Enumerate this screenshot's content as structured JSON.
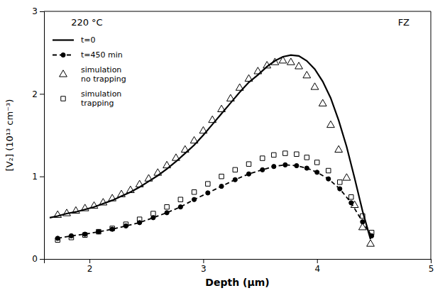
{
  "chart_data": {
    "type": "line",
    "xlabel": "Depth (μm)",
    "ylabel": "[V₂] (10¹³ cm⁻³)",
    "annotations": [
      "220 °C",
      "FZ"
    ],
    "xlim": [
      1.6,
      5.0
    ],
    "ylim": [
      0,
      3.0
    ],
    "xticks": [
      2,
      3,
      4,
      5
    ],
    "yticks": [
      0,
      1,
      2,
      3
    ],
    "grid": false,
    "legend": "upper left",
    "series": [
      {
        "name": "t=0",
        "type": "line",
        "line_style": "solid",
        "marker": "none",
        "color": "#000000",
        "x": [
          1.65,
          1.72,
          1.8,
          1.88,
          1.96,
          2.04,
          2.12,
          2.2,
          2.28,
          2.36,
          2.44,
          2.52,
          2.6,
          2.68,
          2.76,
          2.84,
          2.92,
          3.0,
          3.08,
          3.16,
          3.24,
          3.32,
          3.4,
          3.48,
          3.56,
          3.63,
          3.7,
          3.77,
          3.84,
          3.91,
          3.98,
          4.05,
          4.12,
          4.19,
          4.26,
          4.33,
          4.4,
          4.47
        ],
        "values": [
          0.5,
          0.52,
          0.55,
          0.57,
          0.6,
          0.63,
          0.67,
          0.71,
          0.76,
          0.81,
          0.87,
          0.94,
          1.01,
          1.09,
          1.18,
          1.28,
          1.38,
          1.5,
          1.63,
          1.76,
          1.89,
          2.02,
          2.14,
          2.23,
          2.33,
          2.4,
          2.45,
          2.47,
          2.46,
          2.4,
          2.3,
          2.15,
          1.95,
          1.68,
          1.36,
          0.98,
          0.58,
          0.24
        ]
      },
      {
        "name": "t=450 min",
        "type": "line",
        "line_style": "dashed",
        "marker": "circle",
        "color": "#000000",
        "x": [
          1.72,
          1.84,
          1.96,
          2.08,
          2.2,
          2.32,
          2.44,
          2.56,
          2.68,
          2.8,
          2.92,
          3.04,
          3.16,
          3.28,
          3.4,
          3.52,
          3.62,
          3.72,
          3.82,
          3.91,
          4.0,
          4.1,
          4.2,
          4.3,
          4.4,
          4.48
        ],
        "values": [
          0.25,
          0.28,
          0.3,
          0.33,
          0.36,
          0.4,
          0.44,
          0.5,
          0.56,
          0.63,
          0.72,
          0.8,
          0.88,
          0.96,
          1.03,
          1.08,
          1.12,
          1.14,
          1.13,
          1.1,
          1.05,
          0.97,
          0.85,
          0.68,
          0.45,
          0.28
        ]
      },
      {
        "name": "simulation\nno trapping",
        "type": "scatter",
        "line_style": "none",
        "marker": "triangle",
        "color": "#000000",
        "x": [
          1.72,
          1.8,
          1.88,
          1.96,
          2.04,
          2.12,
          2.2,
          2.28,
          2.36,
          2.44,
          2.52,
          2.6,
          2.68,
          2.76,
          2.84,
          2.92,
          3.0,
          3.08,
          3.16,
          3.24,
          3.32,
          3.4,
          3.48,
          3.56,
          3.63,
          3.7,
          3.77,
          3.84,
          3.91,
          3.98,
          4.05,
          4.12,
          4.19,
          4.26,
          4.33,
          4.4,
          4.47
        ],
        "values": [
          0.53,
          0.55,
          0.58,
          0.61,
          0.64,
          0.68,
          0.73,
          0.78,
          0.83,
          0.9,
          0.97,
          1.04,
          1.13,
          1.22,
          1.32,
          1.43,
          1.55,
          1.68,
          1.81,
          1.94,
          2.07,
          2.18,
          2.27,
          2.34,
          2.38,
          2.4,
          2.38,
          2.33,
          2.22,
          2.08,
          1.88,
          1.62,
          1.32,
          0.98,
          0.65,
          0.38,
          0.18
        ]
      },
      {
        "name": "simulation\ntrapping",
        "type": "scatter",
        "line_style": "none",
        "marker": "square",
        "color": "#000000",
        "x": [
          1.72,
          1.84,
          1.96,
          2.08,
          2.2,
          2.32,
          2.44,
          2.56,
          2.68,
          2.8,
          2.92,
          3.04,
          3.16,
          3.28,
          3.4,
          3.52,
          3.62,
          3.72,
          3.82,
          3.91,
          4.0,
          4.1,
          4.2,
          4.3,
          4.4,
          4.48
        ],
        "values": [
          0.23,
          0.26,
          0.29,
          0.33,
          0.37,
          0.42,
          0.48,
          0.55,
          0.63,
          0.72,
          0.81,
          0.91,
          1.0,
          1.08,
          1.15,
          1.22,
          1.26,
          1.28,
          1.27,
          1.23,
          1.17,
          1.07,
          0.93,
          0.75,
          0.52,
          0.32
        ]
      }
    ]
  }
}
